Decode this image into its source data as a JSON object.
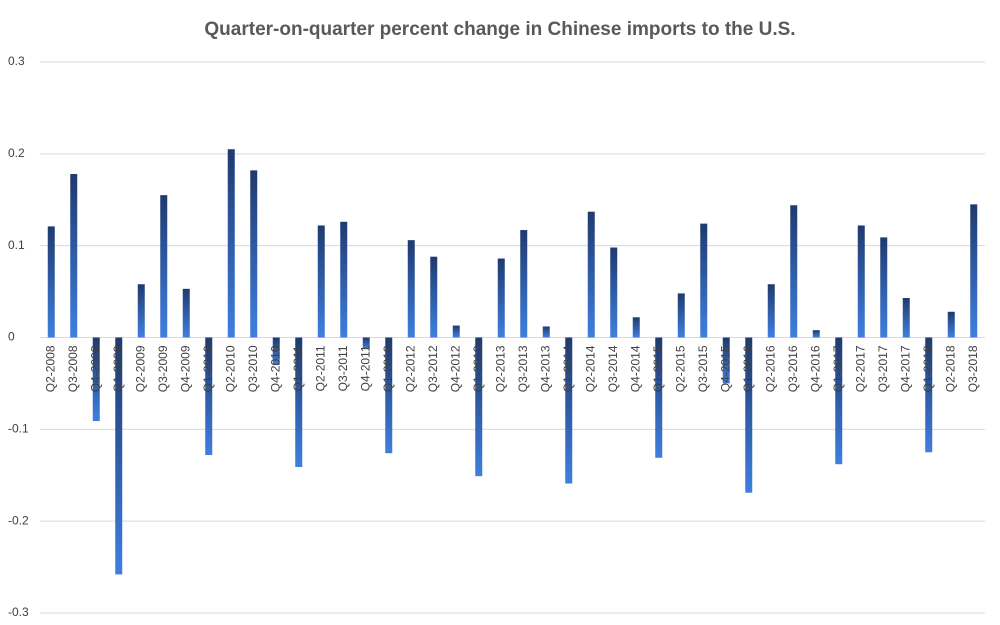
{
  "chart_data": {
    "type": "bar",
    "title": "Quarter-on-quarter percent change in Chinese imports to the U.S.",
    "categories": [
      "Q2-2008",
      "Q3-2008",
      "Q4-2008",
      "Q1-2009",
      "Q2-2009",
      "Q3-2009",
      "Q4-2009",
      "Q1-2010",
      "Q2-2010",
      "Q3-2010",
      "Q4-2010",
      "Q1-2011",
      "Q2-2011",
      "Q3-2011",
      "Q4-2011",
      "Q1-2012",
      "Q2-2012",
      "Q3-2012",
      "Q4-2012",
      "Q1-2013",
      "Q2-2013",
      "Q3-2013",
      "Q4-2013",
      "Q1-2014",
      "Q2-2014",
      "Q3-2014",
      "Q4-2014",
      "Q1-2015",
      "Q2-2015",
      "Q3-2015",
      "Q4-2015",
      "Q1-2016",
      "Q2-2016",
      "Q3-2016",
      "Q4-2016",
      "Q1-2017",
      "Q2-2017",
      "Q3-2017",
      "Q4-2017",
      "Q1-2018",
      "Q2-2018",
      "Q3-2018"
    ],
    "values": [
      0.121,
      0.178,
      -0.091,
      -0.258,
      0.058,
      0.155,
      0.053,
      -0.128,
      0.205,
      0.182,
      -0.03,
      -0.141,
      0.122,
      0.126,
      -0.012,
      -0.126,
      0.106,
      0.088,
      0.013,
      -0.151,
      0.086,
      0.117,
      0.012,
      -0.159,
      0.137,
      0.098,
      0.022,
      -0.131,
      0.048,
      0.124,
      -0.05,
      -0.169,
      0.058,
      0.144,
      0.008,
      -0.138,
      0.122,
      0.109,
      0.043,
      -0.125,
      0.028,
      0.145
    ],
    "color": [
      "#1f3a6e",
      "#3f7fe0"
    ],
    "ylim": [
      -0.3,
      0.3
    ],
    "yticks": [
      -0.3,
      -0.2,
      -0.1,
      0,
      0.1,
      0.2,
      0.3
    ],
    "grid": true
  }
}
